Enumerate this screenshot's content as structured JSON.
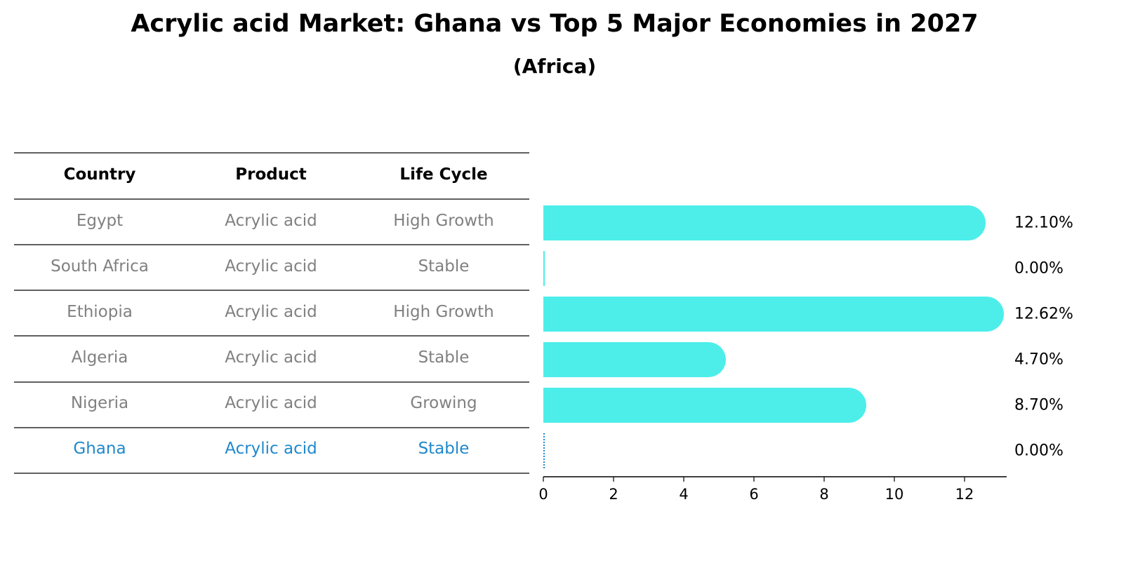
{
  "title": "Acrylic acid Market: Ghana vs Top 5 Major Economies in 2027",
  "subtitle": "(Africa)",
  "table": {
    "headers": [
      "Country",
      "Product",
      "Life Cycle"
    ],
    "rows": [
      {
        "country": "Egypt",
        "product": "Acrylic acid",
        "life_cycle": "High Growth",
        "highlight": false
      },
      {
        "country": "South Africa",
        "product": "Acrylic acid",
        "life_cycle": "Stable",
        "highlight": false
      },
      {
        "country": "Ethiopia",
        "product": "Acrylic acid",
        "life_cycle": "High Growth",
        "highlight": false
      },
      {
        "country": "Algeria",
        "product": "Acrylic acid",
        "life_cycle": "Stable",
        "highlight": false
      },
      {
        "country": "Nigeria",
        "product": "Acrylic acid",
        "life_cycle": "Growing",
        "highlight": false
      },
      {
        "country": "Ghana",
        "product": "Acrylic acid",
        "life_cycle": "Stable",
        "highlight": true
      }
    ]
  },
  "colors": {
    "bar": "#4DEEEA",
    "highlight_text": "#1F88CC",
    "normal_text": "#808080",
    "highlight_line": "#1F88CC"
  },
  "chart_data": {
    "type": "bar",
    "orientation": "horizontal",
    "categories": [
      "Egypt",
      "South Africa",
      "Ethiopia",
      "Algeria",
      "Nigeria",
      "Ghana"
    ],
    "values": [
      12.1,
      0.0,
      12.62,
      4.7,
      8.7,
      0.0
    ],
    "value_labels": [
      "12.10%",
      "0.00%",
      "12.62%",
      "4.70%",
      "8.70%",
      "0.00%"
    ],
    "xlim": [
      0,
      13.2
    ],
    "xticks": [
      0,
      2,
      4,
      6,
      8,
      10,
      12
    ]
  }
}
